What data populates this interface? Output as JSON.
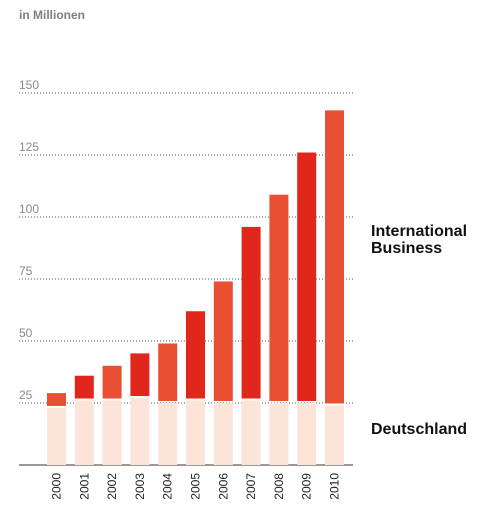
{
  "unit_label": "in Millionen",
  "colors": {
    "international_a": "#e94f33",
    "international_b": "#e1261c",
    "deutschland": "#fce4d8",
    "grid": "#555555",
    "tick_text": "#8a8a8a"
  },
  "chart_data": {
    "type": "bar",
    "stacked": true,
    "categories": [
      "2000",
      "2001",
      "2002",
      "2003",
      "2004",
      "2005",
      "2006",
      "2007",
      "2008",
      "2009",
      "2010"
    ],
    "series": [
      {
        "name": "Deutschland",
        "values": [
          23,
          26,
          26,
          27,
          25,
          26,
          25,
          26,
          25,
          25,
          24
        ]
      },
      {
        "name": "International Business",
        "values": [
          6,
          10,
          14,
          18,
          24,
          36,
          49,
          70,
          84,
          101,
          119
        ]
      }
    ],
    "yticks": [
      25,
      50,
      75,
      100,
      125,
      150
    ],
    "ylim": [
      0,
      160
    ],
    "grid": true,
    "legend": "right, inline labels"
  }
}
